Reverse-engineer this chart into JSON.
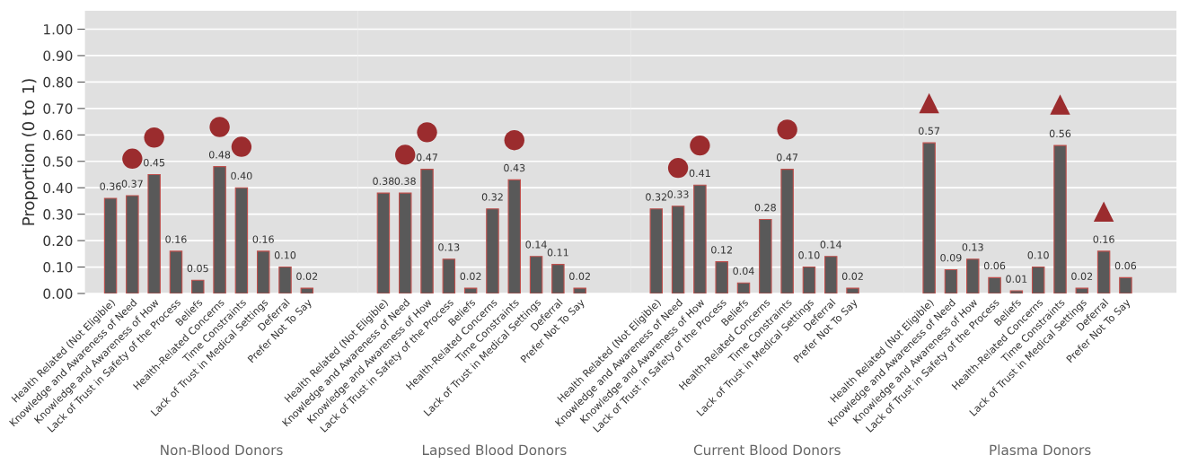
{
  "chart_data": [
    {
      "type": "bar",
      "xlabel": "Non-Blood Donors",
      "ylabel": "Proportion (0 to 1)",
      "grid": "y",
      "ylim": [
        0,
        1.07
      ],
      "yticks": [
        {
          "value": 0,
          "label": "0.00"
        },
        {
          "value": 0.1,
          "label": "0.10"
        },
        {
          "value": 0.2,
          "label": "0.20"
        },
        {
          "value": 0.3,
          "label": "0.30"
        },
        {
          "value": 0.4,
          "label": "0.40"
        },
        {
          "value": 0.5,
          "label": "0.50"
        },
        {
          "value": 0.6,
          "label": "0.60"
        },
        {
          "value": 0.7,
          "label": "0.70"
        },
        {
          "value": 0.8,
          "label": "0.80"
        },
        {
          "value": 0.9,
          "label": "0.90"
        },
        {
          "value": 1.0,
          "label": "1.00"
        }
      ],
      "categories": [
        "Health Related (Not Eligible)",
        "Knowledge and Awareness of Need",
        "Knowledge and Awareness of How",
        "Lack of Trust in Safety of the Process",
        "Beliefs",
        "Health-Related Concerns",
        "Time Constraints",
        "Lack of Trust in Medical Settings",
        "Deferral",
        "Prefer Not To Say"
      ],
      "series": [
        {
          "type": "bar",
          "color": "#595959",
          "values": [
            0.36,
            0.37,
            0.45,
            0.16,
            0.05,
            0.48,
            0.4,
            0.16,
            0.1,
            0.02
          ],
          "value_labels": [
            "0.36",
            "0.37",
            "0.45",
            "0.16",
            "0.05",
            "0.48",
            "0.40",
            "0.16",
            "0.10",
            "0.02"
          ]
        },
        {
          "type": "scatter",
          "color": "#9b2c2e",
          "marker": "circle",
          "x": [
            "Knowledge and Awareness of Need",
            "Knowledge and Awareness of How",
            "Health-Related Concerns",
            "Time Constraints"
          ],
          "values": [
            0.51,
            0.59,
            0.63,
            0.555
          ]
        }
      ]
    },
    {
      "type": "bar",
      "xlabel": "Lapsed Blood Donors",
      "grid": "y",
      "ylim": [
        0,
        1.07
      ],
      "tick_labels": "x",
      "yticks": [
        0,
        0.1,
        0.2,
        0.3,
        0.4,
        0.5,
        0.6,
        0.7,
        0.8,
        0.9,
        1.0
      ],
      "categories": [
        "Health Related (Not Eligible)",
        "Knowledge and Awareness of Need",
        "Knowledge and Awareness of How",
        "Lack of Trust in Safety of the Process",
        "Beliefs",
        "Health-Related Concerns",
        "Time Constraints",
        "Lack of Trust in Medical Settings",
        "Deferral",
        "Prefer Not To Say"
      ],
      "series": [
        {
          "type": "bar",
          "color": "#595959",
          "values": [
            0.38,
            0.38,
            0.47,
            0.13,
            0.02,
            0.32,
            0.43,
            0.14,
            0.11,
            0.02
          ],
          "value_labels": [
            "0.38",
            "0.38",
            "0.47",
            "0.13",
            "0.02",
            "0.32",
            "0.43",
            "0.14",
            "0.11",
            "0.02"
          ]
        },
        {
          "type": "scatter",
          "color": "#9b2c2e",
          "marker": "circle",
          "x": [
            "Knowledge and Awareness of Need",
            "Knowledge and Awareness of How",
            "Time Constraints"
          ],
          "values": [
            0.525,
            0.61,
            0.58
          ]
        }
      ]
    },
    {
      "type": "bar",
      "xlabel": "Current Blood Donors",
      "grid": "y",
      "ylim": [
        0,
        1.07
      ],
      "tick_labels": "x",
      "yticks": [
        0,
        0.1,
        0.2,
        0.3,
        0.4,
        0.5,
        0.6,
        0.7,
        0.8,
        0.9,
        1.0
      ],
      "categories": [
        "Health Related (Not Eligible)",
        "Knowledge and Awareness of Need",
        "Knowledge and Awareness of How",
        "Lack of Trust in Safety of the Process",
        "Beliefs",
        "Health-Related Concerns",
        "Time Constraints",
        "Lack of Trust in Medical Settings",
        "Deferral",
        "Prefer Not To Say"
      ],
      "series": [
        {
          "type": "bar",
          "color": "#595959",
          "values": [
            0.32,
            0.33,
            0.41,
            0.12,
            0.04,
            0.28,
            0.47,
            0.1,
            0.14,
            0.02
          ],
          "value_labels": [
            "0.32",
            "0.33",
            "0.41",
            "0.12",
            "0.04",
            "0.28",
            "0.47",
            "0.10",
            "0.14",
            "0.02"
          ]
        },
        {
          "type": "scatter",
          "color": "#9b2c2e",
          "marker": "circle",
          "x": [
            "Knowledge and Awareness of Need",
            "Knowledge and Awareness of How",
            "Time Constraints"
          ],
          "values": [
            0.475,
            0.56,
            0.62
          ]
        }
      ]
    },
    {
      "type": "bar",
      "xlabel": "Plasma Donors",
      "grid": "y",
      "ylim": [
        0,
        1.07
      ],
      "tick_labels": "x",
      "yticks": [
        0,
        0.1,
        0.2,
        0.3,
        0.4,
        0.5,
        0.6,
        0.7,
        0.8,
        0.9,
        1.0
      ],
      "categories": [
        "Health Related (Not Eligible)",
        "Knowledge and Awareness of Need",
        "Knowledge and Awareness of How",
        "Lack of Trust in Safety of the Process",
        "Beliefs",
        "Health-Related Concerns",
        "Time Constraints",
        "Lack of Trust in Medical Settings",
        "Deferral",
        "Prefer Not To Say"
      ],
      "series": [
        {
          "type": "bar",
          "color": "#595959",
          "values": [
            0.57,
            0.09,
            0.13,
            0.06,
            0.01,
            0.1,
            0.56,
            0.02,
            0.16,
            0.06
          ],
          "value_labels": [
            "0.57",
            "0.09",
            "0.13",
            "0.06",
            "0.01",
            "0.10",
            "0.56",
            "0.02",
            "0.16",
            "0.06"
          ]
        },
        {
          "type": "scatter",
          "color": "#9b2c2e",
          "marker": "triangle",
          "x": [
            "Health Related (Not Eligible)",
            "Time Constraints",
            "Deferral"
          ],
          "values": [
            0.72,
            0.715,
            0.31
          ]
        }
      ]
    }
  ]
}
